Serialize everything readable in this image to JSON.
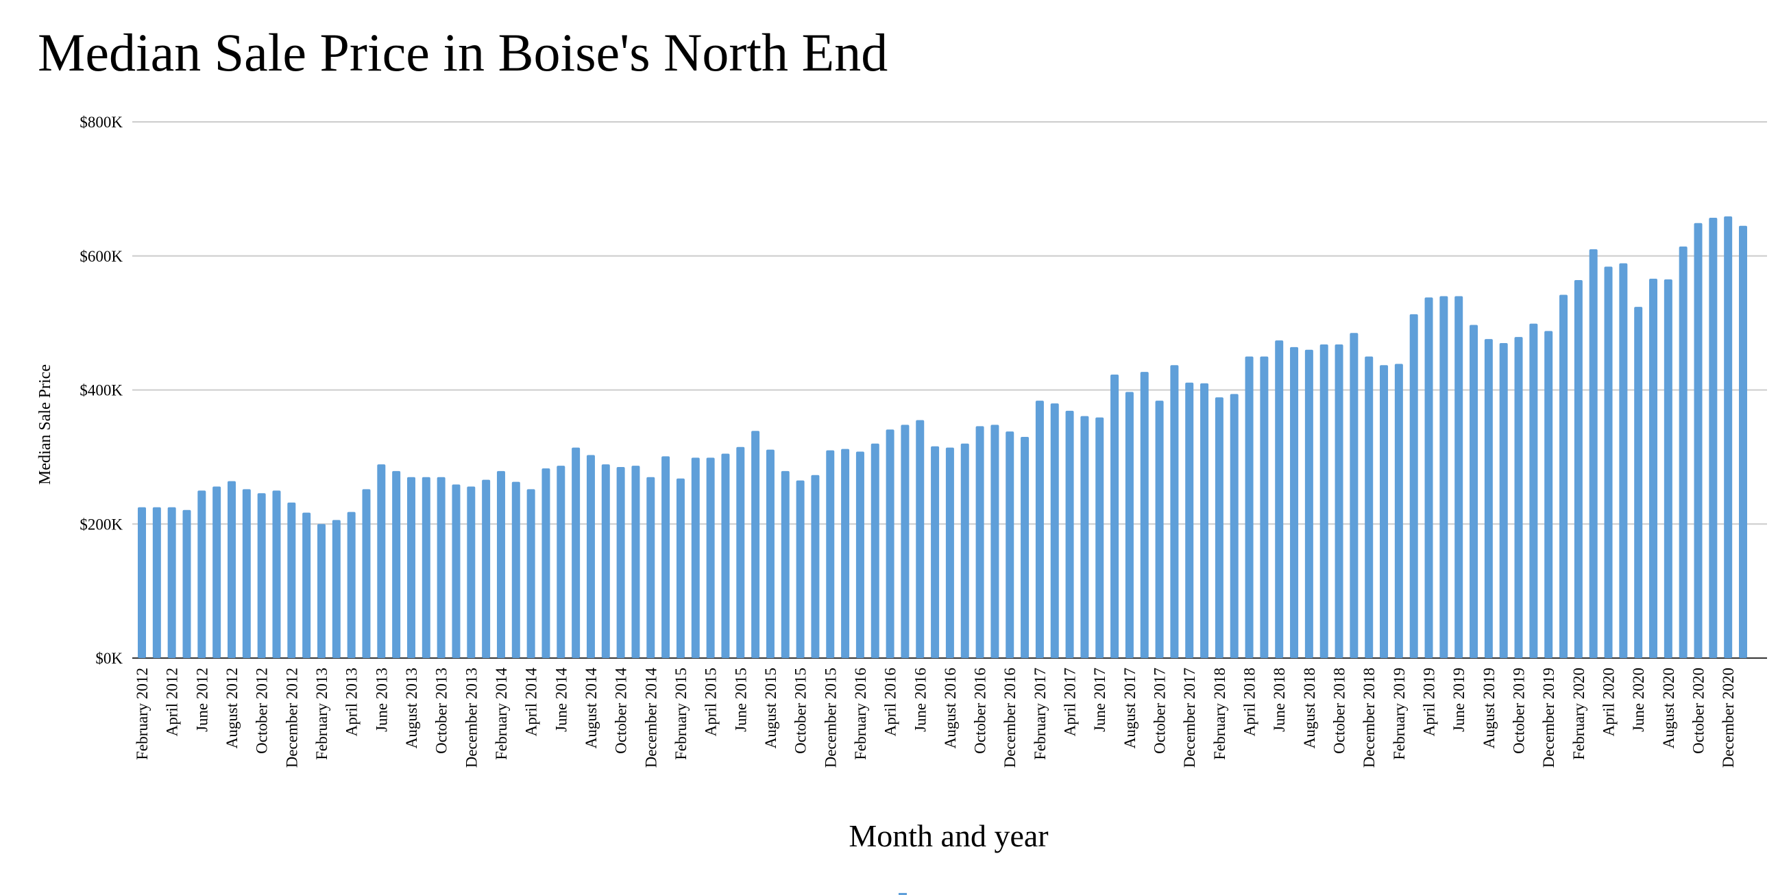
{
  "chart_data": {
    "type": "bar",
    "title": "Median Sale Price in Boise's North End",
    "xlabel": "Month and year",
    "ylabel": "Median Sale Price",
    "ylim": [
      0,
      800000
    ],
    "yticks": [
      {
        "value": 0,
        "label": "$0K"
      },
      {
        "value": 200000,
        "label": "$200K"
      },
      {
        "value": 400000,
        "label": "$400K"
      },
      {
        "value": 600000,
        "label": "$600K"
      },
      {
        "value": 800000,
        "label": "$800K"
      }
    ],
    "grid": true,
    "bar_color": "#5f9fd9",
    "categories": [
      "February 2012",
      "March 2012",
      "April 2012",
      "May 2012",
      "June 2012",
      "July 2012",
      "August 2012",
      "September 2012",
      "October 2012",
      "November 2012",
      "December 2012",
      "January 2013",
      "February 2013",
      "March 2013",
      "April 2013",
      "May 2013",
      "June 2013",
      "July 2013",
      "August 2013",
      "September 2013",
      "October 2013",
      "November 2013",
      "December 2013",
      "January 2014",
      "February 2014",
      "March 2014",
      "April 2014",
      "May 2014",
      "June 2014",
      "July 2014",
      "August 2014",
      "September 2014",
      "October 2014",
      "November 2014",
      "December 2014",
      "January 2015",
      "February 2015",
      "March 2015",
      "April 2015",
      "May 2015",
      "June 2015",
      "July 2015",
      "August 2015",
      "September 2015",
      "October 2015",
      "November 2015",
      "December 2015",
      "January 2016",
      "February 2016",
      "March 2016",
      "April 2016",
      "May 2016",
      "June 2016",
      "July 2016",
      "August 2016",
      "September 2016",
      "October 2016",
      "November 2016",
      "December 2016",
      "January 2017",
      "February 2017",
      "March 2017",
      "April 2017",
      "May 2017",
      "June 2017",
      "July 2017",
      "August 2017",
      "September 2017",
      "October 2017",
      "November 2017",
      "December 2017",
      "January 2018",
      "February 2018",
      "March 2018",
      "April 2018",
      "May 2018",
      "June 2018",
      "July 2018",
      "August 2018",
      "September 2018",
      "October 2018",
      "November 2018",
      "December 2018",
      "January 2019",
      "February 2019",
      "March 2019",
      "April 2019",
      "May 2019",
      "June 2019",
      "July 2019",
      "August 2019",
      "September 2019",
      "October 2019",
      "November 2019",
      "December 2019",
      "January 2020",
      "February 2020",
      "March 2020",
      "April 2020",
      "May 2020",
      "June 2020",
      "July 2020",
      "August 2020",
      "September 2020",
      "October 2020",
      "November 2020",
      "December 2020",
      "January 2021"
    ],
    "values": [
      225000,
      225000,
      225000,
      221000,
      250000,
      256000,
      264000,
      252000,
      246000,
      250000,
      232000,
      217000,
      200000,
      206000,
      218000,
      252000,
      289000,
      279000,
      270000,
      270000,
      270000,
      259000,
      256000,
      266000,
      279000,
      263000,
      252000,
      283000,
      287000,
      314000,
      303000,
      289000,
      285000,
      287000,
      270000,
      301000,
      268000,
      299000,
      299000,
      305000,
      315000,
      339000,
      311000,
      279000,
      265000,
      273000,
      310000,
      312000,
      308000,
      320000,
      341000,
      348000,
      355000,
      316000,
      314000,
      320000,
      346000,
      348000,
      338000,
      330000,
      384000,
      380000,
      369000,
      361000,
      359000,
      423000,
      397000,
      427000,
      384000,
      437000,
      411000,
      410000,
      389000,
      394000,
      450000,
      450000,
      474000,
      464000,
      460000,
      468000,
      468000,
      485000,
      450000,
      437000,
      439000,
      513000,
      538000,
      540000,
      540000,
      497000,
      476000,
      470000,
      479000,
      499000,
      488000,
      542000,
      564000,
      610000,
      584000,
      589000,
      524000,
      566000,
      565000,
      614000,
      649000,
      657000,
      659000,
      645000
    ],
    "xtick_labels": [
      "February 2012",
      "April 2012",
      "June 2012",
      "August 2012",
      "October 2012",
      "December 2012",
      "February 2013",
      "April 2013",
      "June 2013",
      "August 2013",
      "October 2013",
      "December 2013",
      "February 2014",
      "April 2014",
      "June 2014",
      "August 2014",
      "October 2014",
      "December 2014",
      "February 2015",
      "April 2015",
      "June 2015",
      "August 2015",
      "October 2015",
      "December 2015",
      "February 2016",
      "April 2016",
      "June 2016",
      "August 2016",
      "October 2016",
      "December 2016",
      "February 2017",
      "April 2017",
      "June 2017",
      "August 2017",
      "October 2017",
      "December 2017",
      "February 2018",
      "April 2018",
      "June 2018",
      "August 2018",
      "October 2018",
      "December 2018",
      "February 2019",
      "April 2019",
      "June 2019",
      "August 2019",
      "October 2019",
      "December 2019",
      "February 2020",
      "April 2020",
      "June 2020",
      "August 2020",
      "October 2020",
      "December 2020"
    ]
  }
}
